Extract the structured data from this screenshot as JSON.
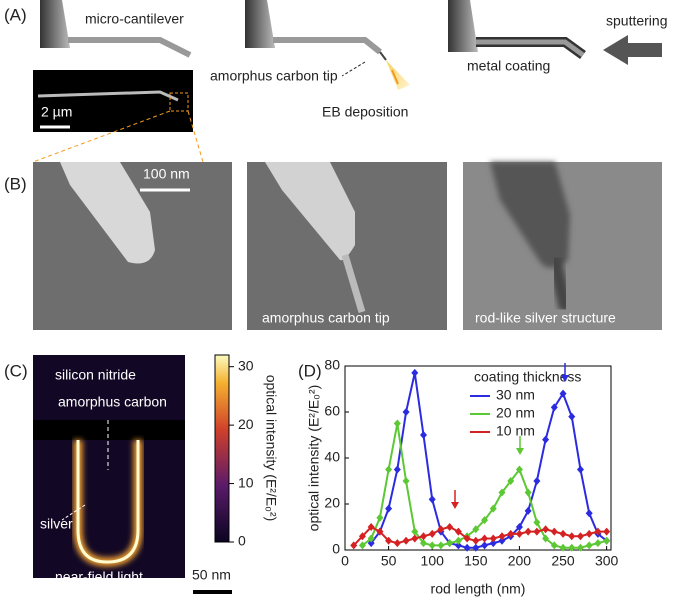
{
  "panel_a": {
    "label": "(A)",
    "cantilever": "micro-cantilever",
    "scale": "2 µm",
    "tip": "amorphus carbon tip",
    "deposition": "EB deposition",
    "coating": "metal coating",
    "sputtering": "sputtering"
  },
  "panel_b": {
    "label": "(B)",
    "scale": "100 nm",
    "image_2": "amorphus carbon tip",
    "image_3": "rod-like silver structure"
  },
  "panel_c": {
    "label": "(C)",
    "top": "silicon nitride",
    "carbon": "amorphus carbon",
    "silver": "silver",
    "bottom": "near-field light",
    "scale": "50 nm",
    "colorbar": {
      "label": "optical intensity (E²/E₀²)",
      "lim": [
        0,
        32
      ],
      "ticks": [
        0,
        10,
        20,
        30
      ]
    }
  },
  "chart_data": {
    "type": "line",
    "panel": "(D)",
    "xlabel": "rod length (nm)",
    "ylabel": "optical intensity (E²/E₀²)",
    "legend_title": "coating thickness",
    "x": [
      10,
      20,
      30,
      40,
      50,
      60,
      70,
      80,
      90,
      100,
      110,
      120,
      130,
      140,
      150,
      160,
      170,
      180,
      190,
      200,
      210,
      220,
      230,
      240,
      250,
      260,
      270,
      280,
      290,
      300
    ],
    "xlim": [
      0,
      305
    ],
    "xticks": [
      0,
      50,
      100,
      150,
      200,
      250,
      300
    ],
    "ylim": [
      0,
      80
    ],
    "yticks": [
      0,
      20,
      40,
      60,
      80
    ],
    "series": [
      {
        "name": "30 nm",
        "color": "#2b2be0",
        "values": [
          null,
          null,
          3,
          8,
          18,
          35,
          60,
          77,
          50,
          22,
          8,
          3,
          2,
          1,
          1,
          2,
          3,
          4,
          6,
          10,
          17,
          30,
          48,
          62,
          68,
          58,
          35,
          16,
          7,
          4
        ]
      },
      {
        "name": "20 nm",
        "color": "#5cc834",
        "values": [
          null,
          2,
          5,
          14,
          35,
          55,
          30,
          8,
          3,
          2,
          2,
          3,
          4,
          6,
          9,
          13,
          18,
          25,
          30,
          35,
          25,
          12,
          5,
          2,
          1,
          1,
          1,
          2,
          3,
          4
        ]
      },
      {
        "name": "10 nm",
        "color": "#d42222",
        "values": [
          2,
          6,
          10,
          8,
          4,
          3,
          4,
          5,
          6,
          7,
          9,
          10,
          8,
          5,
          4,
          5,
          5,
          6,
          7,
          7,
          8,
          8,
          9,
          8,
          7,
          6,
          6,
          7,
          8,
          8
        ]
      }
    ]
  }
}
